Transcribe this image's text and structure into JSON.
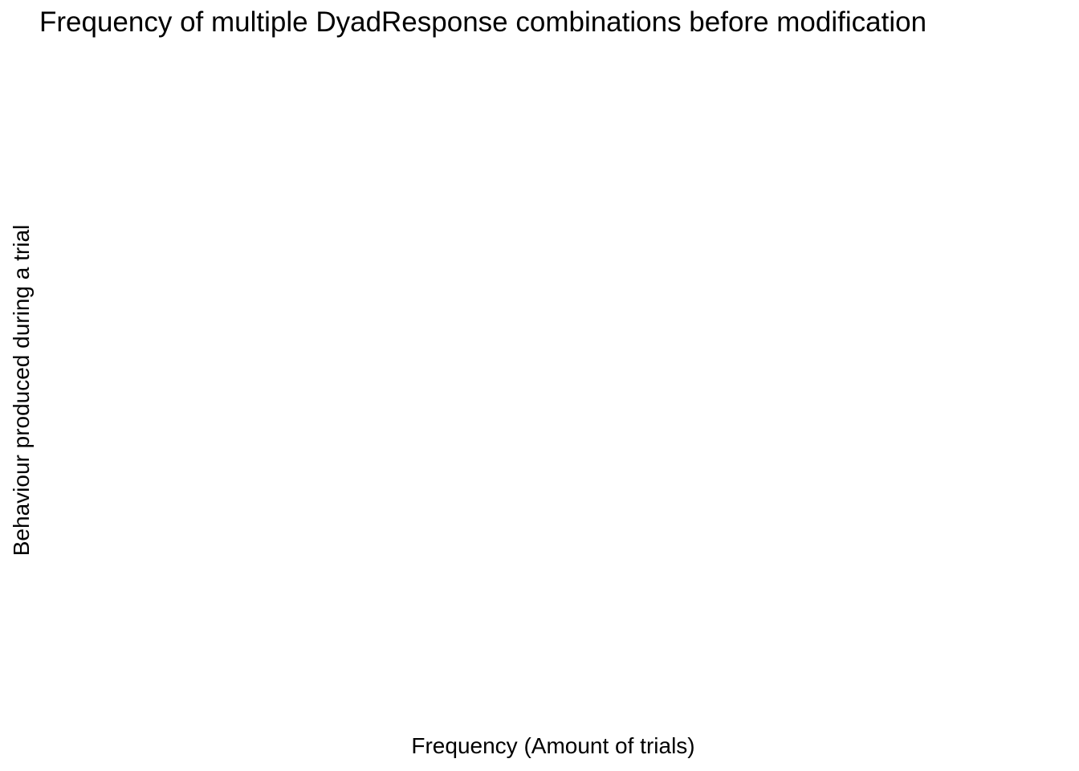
{
  "chart_data": {
    "type": "bar",
    "title": "Frequency of multiple DyadResponse combinations before modification",
    "xlabel": "Frequency (Amount of trials)",
    "ylabel": "Behaviour produced during a trial",
    "categories": [],
    "values": [],
    "grid": false,
    "legend": "none",
    "colors": {
      "background": "#ffffff",
      "text": "#000000"
    }
  }
}
